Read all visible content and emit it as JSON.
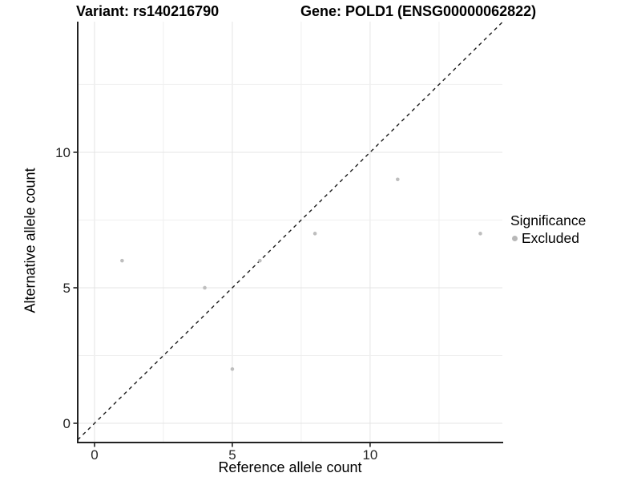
{
  "titles": {
    "variant": "Variant: rs140216790",
    "gene": "Gene: POLD1 (ENSG00000062822)"
  },
  "axes": {
    "x_label": "Reference allele count",
    "y_label": "Alternative allele count",
    "x_ticks": [
      0,
      5,
      10
    ],
    "y_ticks": [
      0,
      5,
      10
    ]
  },
  "legend": {
    "title": "Significance",
    "items": [
      {
        "label": "Excluded",
        "symbol": "circle",
        "color": "#b8b8b8"
      }
    ]
  },
  "chart_data": {
    "type": "scatter",
    "title": "Variant: rs140216790 | Gene: POLD1 (ENSG00000062822)",
    "xlabel": "Reference allele count",
    "ylabel": "Alternative allele count",
    "xlim": [
      -0.61,
      14.8
    ],
    "ylim": [
      -0.71,
      14.82
    ],
    "x_ticks": [
      0,
      5,
      10
    ],
    "y_ticks": [
      0,
      5,
      10
    ],
    "grid": {
      "minor_every": 2.5,
      "major_every": 5,
      "major_color": "#e4e4e4",
      "minor_color": "#efefef"
    },
    "identity_line": {
      "show": true,
      "style": "dashed",
      "color": "#1a1a1a"
    },
    "series": [
      {
        "name": "Excluded",
        "color": "#bebebe",
        "point_radius": 2.3,
        "points": [
          [
            1,
            6
          ],
          [
            4,
            5
          ],
          [
            5,
            2
          ],
          [
            6,
            6
          ],
          [
            8,
            7
          ],
          [
            11,
            9
          ],
          [
            14,
            7
          ]
        ]
      }
    ],
    "legend_position": "right"
  },
  "colors": {
    "background": "#ffffff",
    "axis_line": "#222222",
    "tick_mark": "#222222",
    "tick_label": "#262626",
    "point": "#bebebe"
  }
}
